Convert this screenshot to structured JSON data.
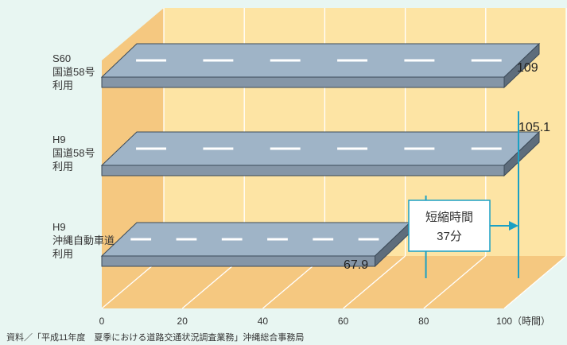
{
  "chart_data": {
    "type": "bar",
    "orientation": "horizontal",
    "categories": [
      [
        "S60",
        "国道58号",
        "利用"
      ],
      [
        "H9",
        "国道58号",
        "利用"
      ],
      [
        "H9",
        "沖縄自動車道",
        "利用"
      ]
    ],
    "values": [
      109,
      105.1,
      67.9
    ],
    "value_labels": [
      "109",
      "105.1",
      "67.9"
    ],
    "xlim": [
      0,
      100
    ],
    "x_ticks": [
      "0",
      "20",
      "40",
      "60",
      "80",
      "100"
    ],
    "x_unit": "（時間）",
    "annotation": {
      "line1": "短縮時間",
      "line2": "37分"
    },
    "source": "資料／「平成11年度　夏季における道路交通状況調査業務」沖縄総合事務局",
    "colors": {
      "background": "#e8f6f2",
      "wall": "#fde4a4",
      "floor": "#f5c880",
      "bar_top": "#9fb4c7",
      "bar_front": "#8596a7",
      "bar_side": "#5e6d7c",
      "marker": "#1ba0c4"
    }
  }
}
